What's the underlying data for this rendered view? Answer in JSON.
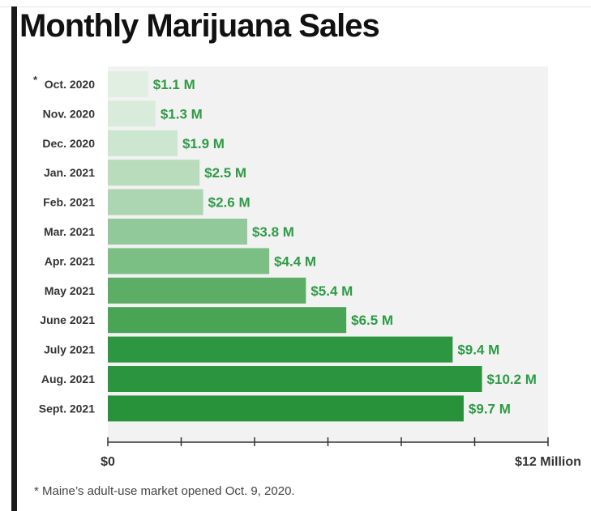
{
  "title": "Monthly Marijuana Sales",
  "footnote": "* Maine’s adult-use market opened Oct. 9, 2020.",
  "chart_data": {
    "type": "bar",
    "orientation": "horizontal",
    "title": "Monthly Marijuana Sales",
    "categories": [
      "Oct. 2020",
      "Nov. 2020",
      "Dec. 2020",
      "Jan. 2021",
      "Feb. 2021",
      "Mar. 2021",
      "Apr. 2021",
      "May 2021",
      "June 2021",
      "July 2021",
      "Aug. 2021",
      "Sept. 2021"
    ],
    "category_marker": "*",
    "values": [
      1.1,
      1.3,
      1.9,
      2.5,
      2.6,
      3.8,
      4.4,
      5.4,
      6.5,
      9.4,
      10.2,
      9.7
    ],
    "value_labels": [
      "$1.1 M",
      "$1.3 M",
      "$1.9 M",
      "$2.5 M",
      "$2.6 M",
      "$3.8 M",
      "$4.4 M",
      "$5.4 M",
      "$6.5 M",
      "$9.4 M",
      "$10.2 M",
      "$9.7 M"
    ],
    "xlim": [
      0,
      12
    ],
    "x_tick_labels": [
      "$0",
      "$12 Million"
    ],
    "xlabel": "",
    "ylabel": "",
    "bar_colors": [
      "#e1efe3",
      "#d9ecdc",
      "#cde6d0",
      "#b8dcbc",
      "#acd6b1",
      "#92c99a",
      "#7cbf85",
      "#5cad66",
      "#4aa455",
      "#2d9641",
      "#2a943e",
      "#279239"
    ],
    "label_color": "#2e9b45",
    "grid": false,
    "legend": "none"
  }
}
